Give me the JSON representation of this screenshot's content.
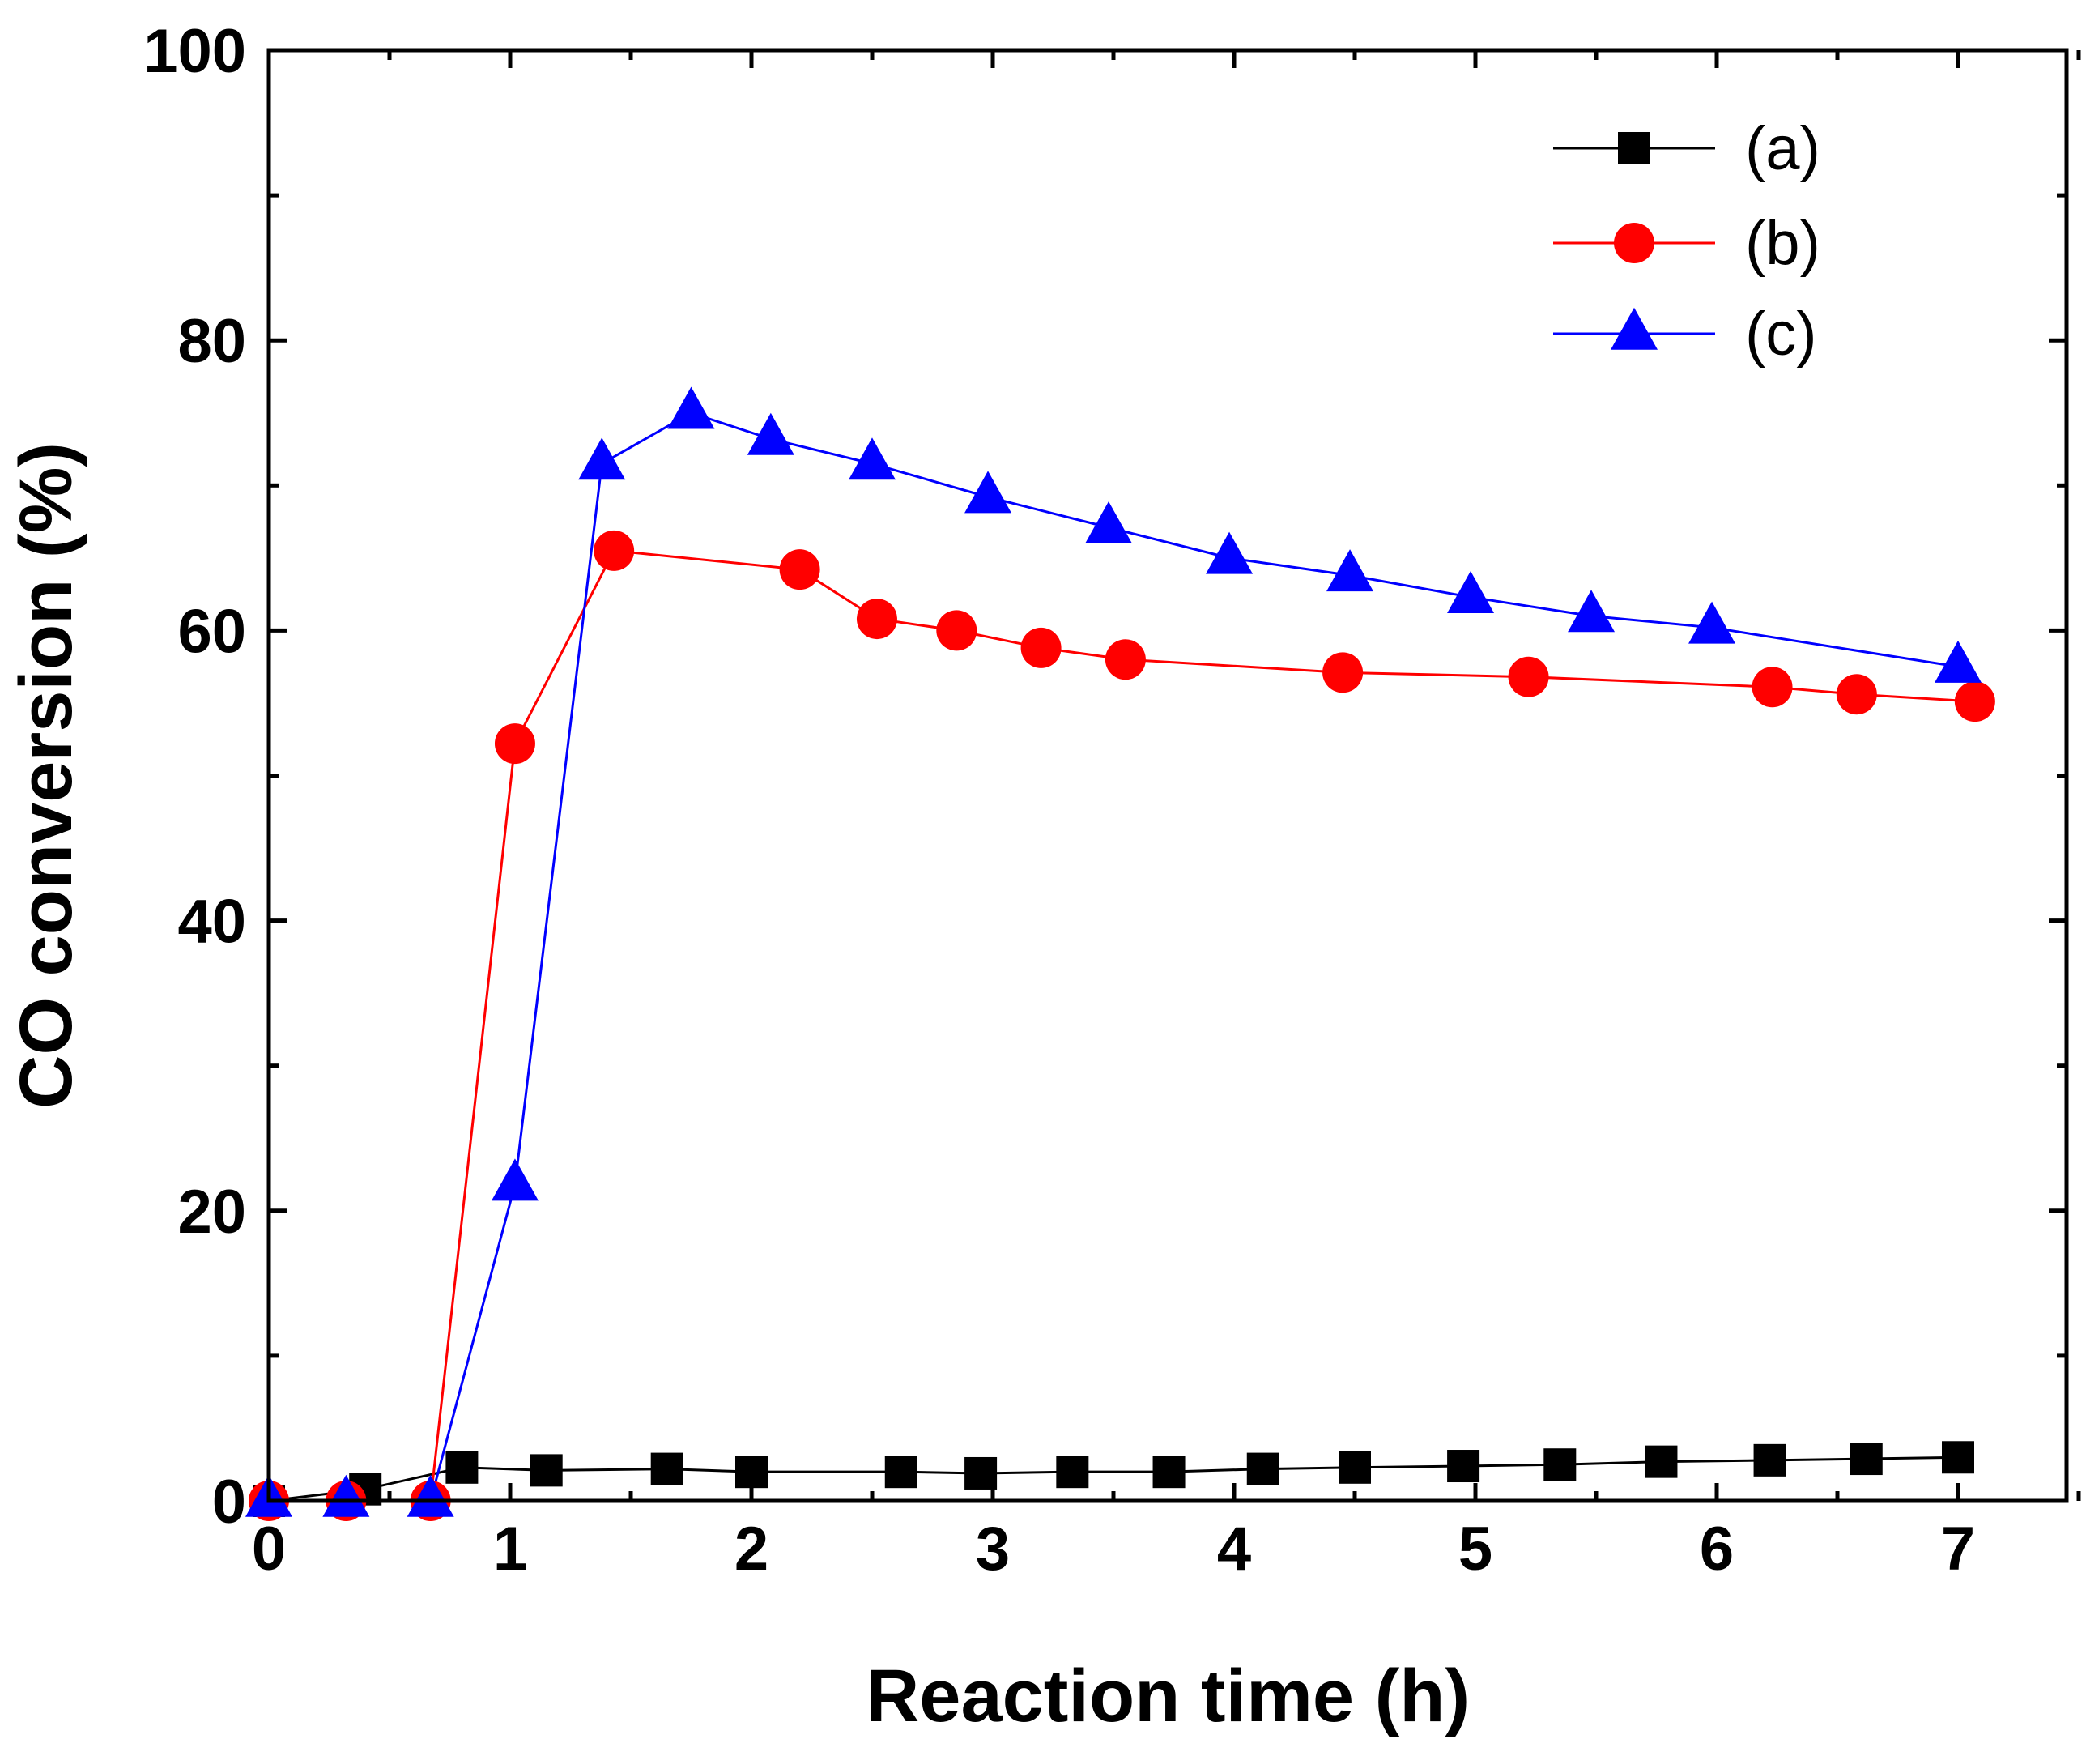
{
  "chart_data": {
    "type": "line",
    "title": "",
    "xlabel": "Reaction time (h)",
    "ylabel": "CO conversion (%)",
    "xlim": [
      0,
      7.5
    ],
    "ylim": [
      0,
      100
    ],
    "x_ticks": [
      0,
      1,
      2,
      3,
      4,
      5,
      6,
      7
    ],
    "x_tick_labels": [
      "0",
      "1",
      "2",
      "3",
      "4",
      "5",
      "6",
      "7"
    ],
    "y_ticks": [
      0,
      20,
      40,
      60,
      80,
      100
    ],
    "y_tick_labels": [
      "0",
      "20",
      "40",
      "60",
      "80",
      "100"
    ],
    "grid": false,
    "legend_position": "top-right",
    "series": [
      {
        "name": "(a)",
        "color": "#000000",
        "marker": "square",
        "x": [
          0,
          0.4,
          0.8,
          1.15,
          1.65,
          2.0,
          2.62,
          2.95,
          3.33,
          3.73,
          4.12,
          4.5,
          4.95,
          5.35,
          5.77,
          6.22,
          6.62,
          7.0
        ],
        "y": [
          0,
          0.8,
          2.3,
          2.1,
          2.2,
          2.0,
          2.0,
          1.9,
          2.0,
          2.0,
          2.2,
          2.3,
          2.4,
          2.5,
          2.7,
          2.8,
          2.9,
          3.0
        ]
      },
      {
        "name": "(b)",
        "color": "#ff0000",
        "marker": "circle",
        "x": [
          0,
          0.32,
          0.67,
          1.02,
          1.43,
          2.2,
          2.52,
          2.85,
          3.2,
          3.55,
          4.45,
          5.22,
          6.23,
          6.58,
          7.07
        ],
        "y": [
          0,
          0,
          0,
          52.2,
          65.5,
          64.2,
          60.8,
          60.0,
          58.8,
          58.0,
          57.1,
          56.8,
          56.1,
          55.6,
          55.1
        ]
      },
      {
        "name": "(c)",
        "color": "#0000ff",
        "marker": "triangle",
        "x": [
          0,
          0.32,
          0.67,
          1.02,
          1.38,
          1.75,
          2.08,
          2.5,
          2.98,
          3.48,
          3.98,
          4.48,
          4.98,
          5.48,
          5.98,
          7.0
        ],
        "y": [
          0,
          0,
          0,
          21.8,
          71.5,
          75.0,
          73.2,
          71.5,
          69.2,
          67.1,
          65.0,
          63.8,
          62.3,
          61.0,
          60.2,
          57.5
        ]
      }
    ]
  }
}
